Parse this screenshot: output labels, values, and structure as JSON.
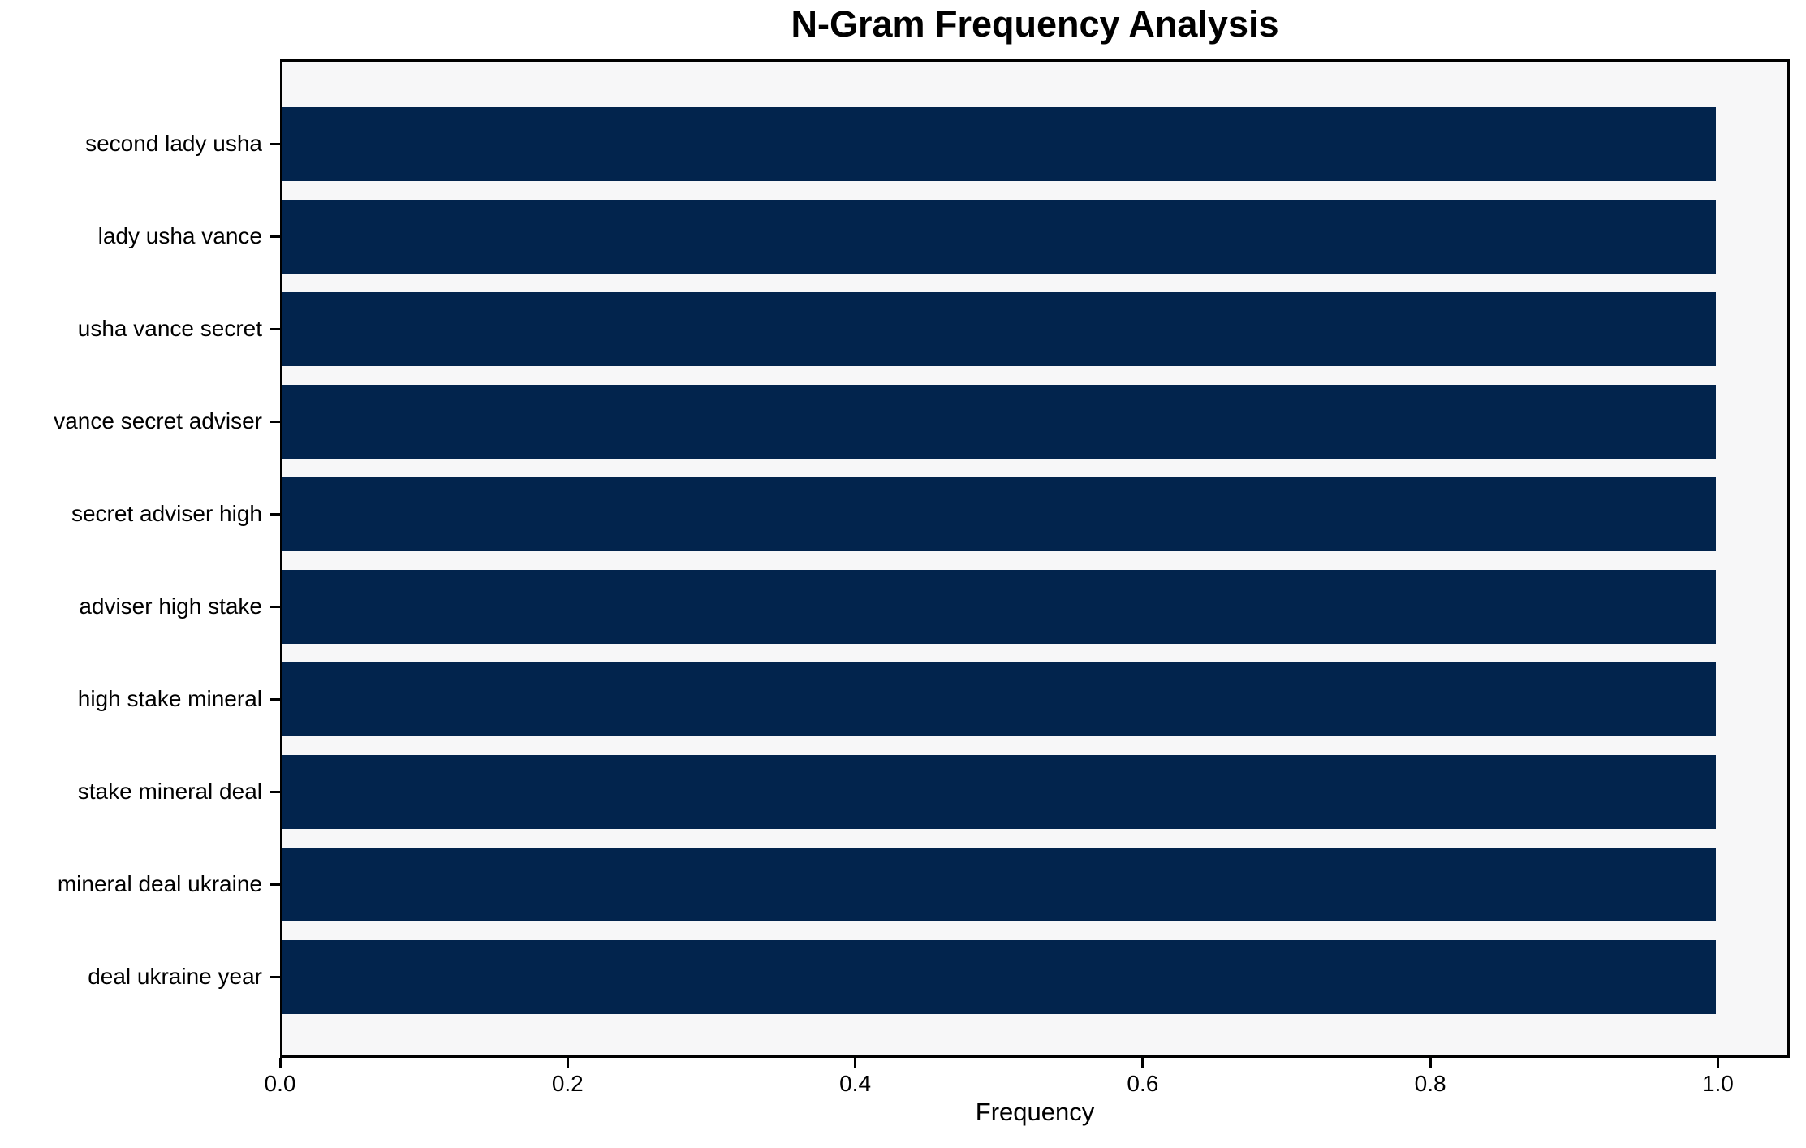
{
  "chart_data": {
    "type": "bar",
    "orientation": "horizontal",
    "title": "N-Gram Frequency Analysis",
    "xlabel": "Frequency",
    "ylabel": "",
    "categories": [
      "second lady usha",
      "lady usha vance",
      "usha vance secret",
      "vance secret adviser",
      "secret adviser high",
      "adviser high stake",
      "high stake mineral",
      "stake mineral deal",
      "mineral deal ukraine",
      "deal ukraine year"
    ],
    "values": [
      1.0,
      1.0,
      1.0,
      1.0,
      1.0,
      1.0,
      1.0,
      1.0,
      1.0,
      1.0
    ],
    "xlim": [
      0,
      1.05
    ],
    "xticks": [
      0.0,
      0.2,
      0.4,
      0.6,
      0.8,
      1.0
    ],
    "xtick_labels": [
      "0.0",
      "0.2",
      "0.4",
      "0.6",
      "0.8",
      "1.0"
    ],
    "grid": false,
    "legend": "none",
    "colors": {
      "bar": "#02244d",
      "plot_background": "#f7f7f8",
      "figure_background": "#ffffff",
      "spine": "#000000",
      "text": "#000000"
    }
  }
}
